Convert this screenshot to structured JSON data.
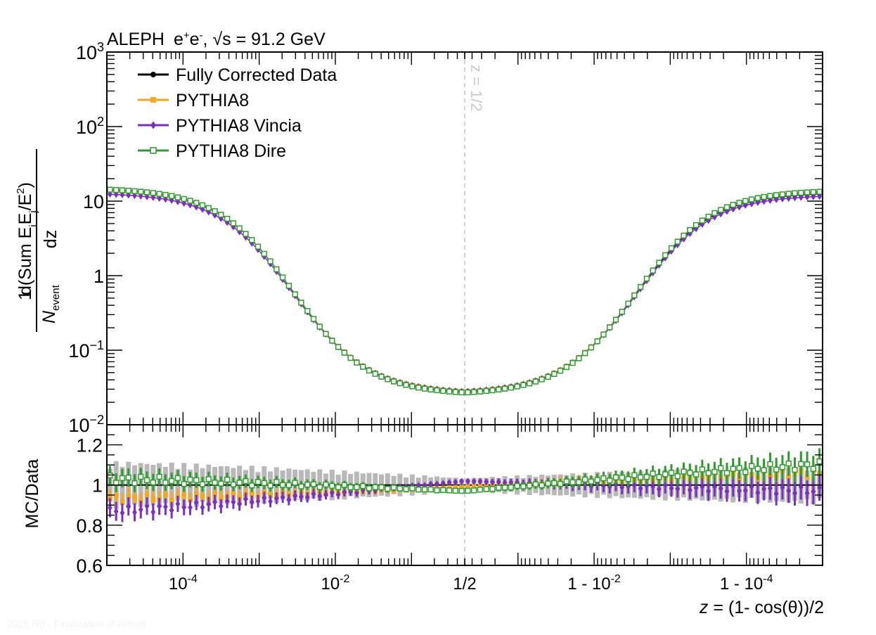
{
  "chart_data": {
    "type": "line",
    "title_parts": {
      "experiment": "ALEPH",
      "beam_base": "e",
      "beam_plus": "+",
      "beam_base2": "e",
      "beam_minus": "-",
      "energy": "√s = 91.2 GeV"
    },
    "xlabel": "z = (1- cos(θ))/2",
    "ylabel_top": {
      "numerator": "d(Sum E",
      "sub_i": "i",
      "E2": "E",
      "sub_j": "j",
      "tail": "/E",
      "sup_2": "2",
      "close": ")",
      "dz": "dz",
      "one": "1",
      "N": "N",
      "event": "event"
    },
    "ylabel_bottom": "MC/Data",
    "annotation": "z = 1/2",
    "watermark": "2025 HB - Finalization of Result",
    "x_ticks": [
      {
        "label": "10",
        "exp": "-4"
      },
      {
        "label": "10",
        "exp": "-2"
      },
      {
        "label": "1/2",
        "exp": ""
      },
      {
        "label": "1 - 10",
        "exp": "-2"
      },
      {
        "label": "1 - 10",
        "exp": "-4"
      }
    ],
    "y_ticks_top": [
      {
        "label": "10",
        "exp": "3"
      },
      {
        "label": "10",
        "exp": "2"
      },
      {
        "label": "10",
        "exp": ""
      },
      {
        "label": "1",
        "exp": ""
      },
      {
        "label": "10",
        "exp": "−1"
      },
      {
        "label": "10",
        "exp": "−2"
      }
    ],
    "y_ticks_bottom": [
      "1.2",
      "1",
      "0.8",
      "0.6"
    ],
    "ylim_top": [
      0.01,
      1000
    ],
    "ylim_bottom": [
      0.6,
      1.3
    ],
    "xlim_log_left": [
      -5.0,
      -0.301
    ],
    "series": [
      {
        "name": "Fully Corrected Data",
        "color": "#000000",
        "marker": "circle",
        "peak": 14.0,
        "mid": 0.028,
        "tail": 12.5
      },
      {
        "name": "PYTHIA8",
        "color": "#f5a623",
        "marker": "square",
        "peak": 13.9,
        "mid": 0.028,
        "tail": 13.2
      },
      {
        "name": "PYTHIA8 Vincia",
        "color": "#7b2fbe",
        "marker": "diamond",
        "peak": 12.4,
        "mid": 0.028,
        "tail": 11.6
      },
      {
        "name": "PYTHIA8 Dire",
        "color": "#2e9a2e",
        "marker": "open-square",
        "peak": 14.3,
        "mid": 0.027,
        "tail": 13.4
      }
    ],
    "ratio_profiles": [
      {
        "name": "PYTHIA8",
        "left": 0.93,
        "mid": 0.99,
        "right": 1.06
      },
      {
        "name": "PYTHIA8 Vincia",
        "left": 0.87,
        "mid": 1.02,
        "right": 0.97
      },
      {
        "name": "PYTHIA8 Dire",
        "left": 1.03,
        "mid": 0.97,
        "right": 1.1
      }
    ],
    "data_unc_profile": {
      "left": 0.1,
      "mid": 0.03,
      "right": 0.08
    }
  }
}
